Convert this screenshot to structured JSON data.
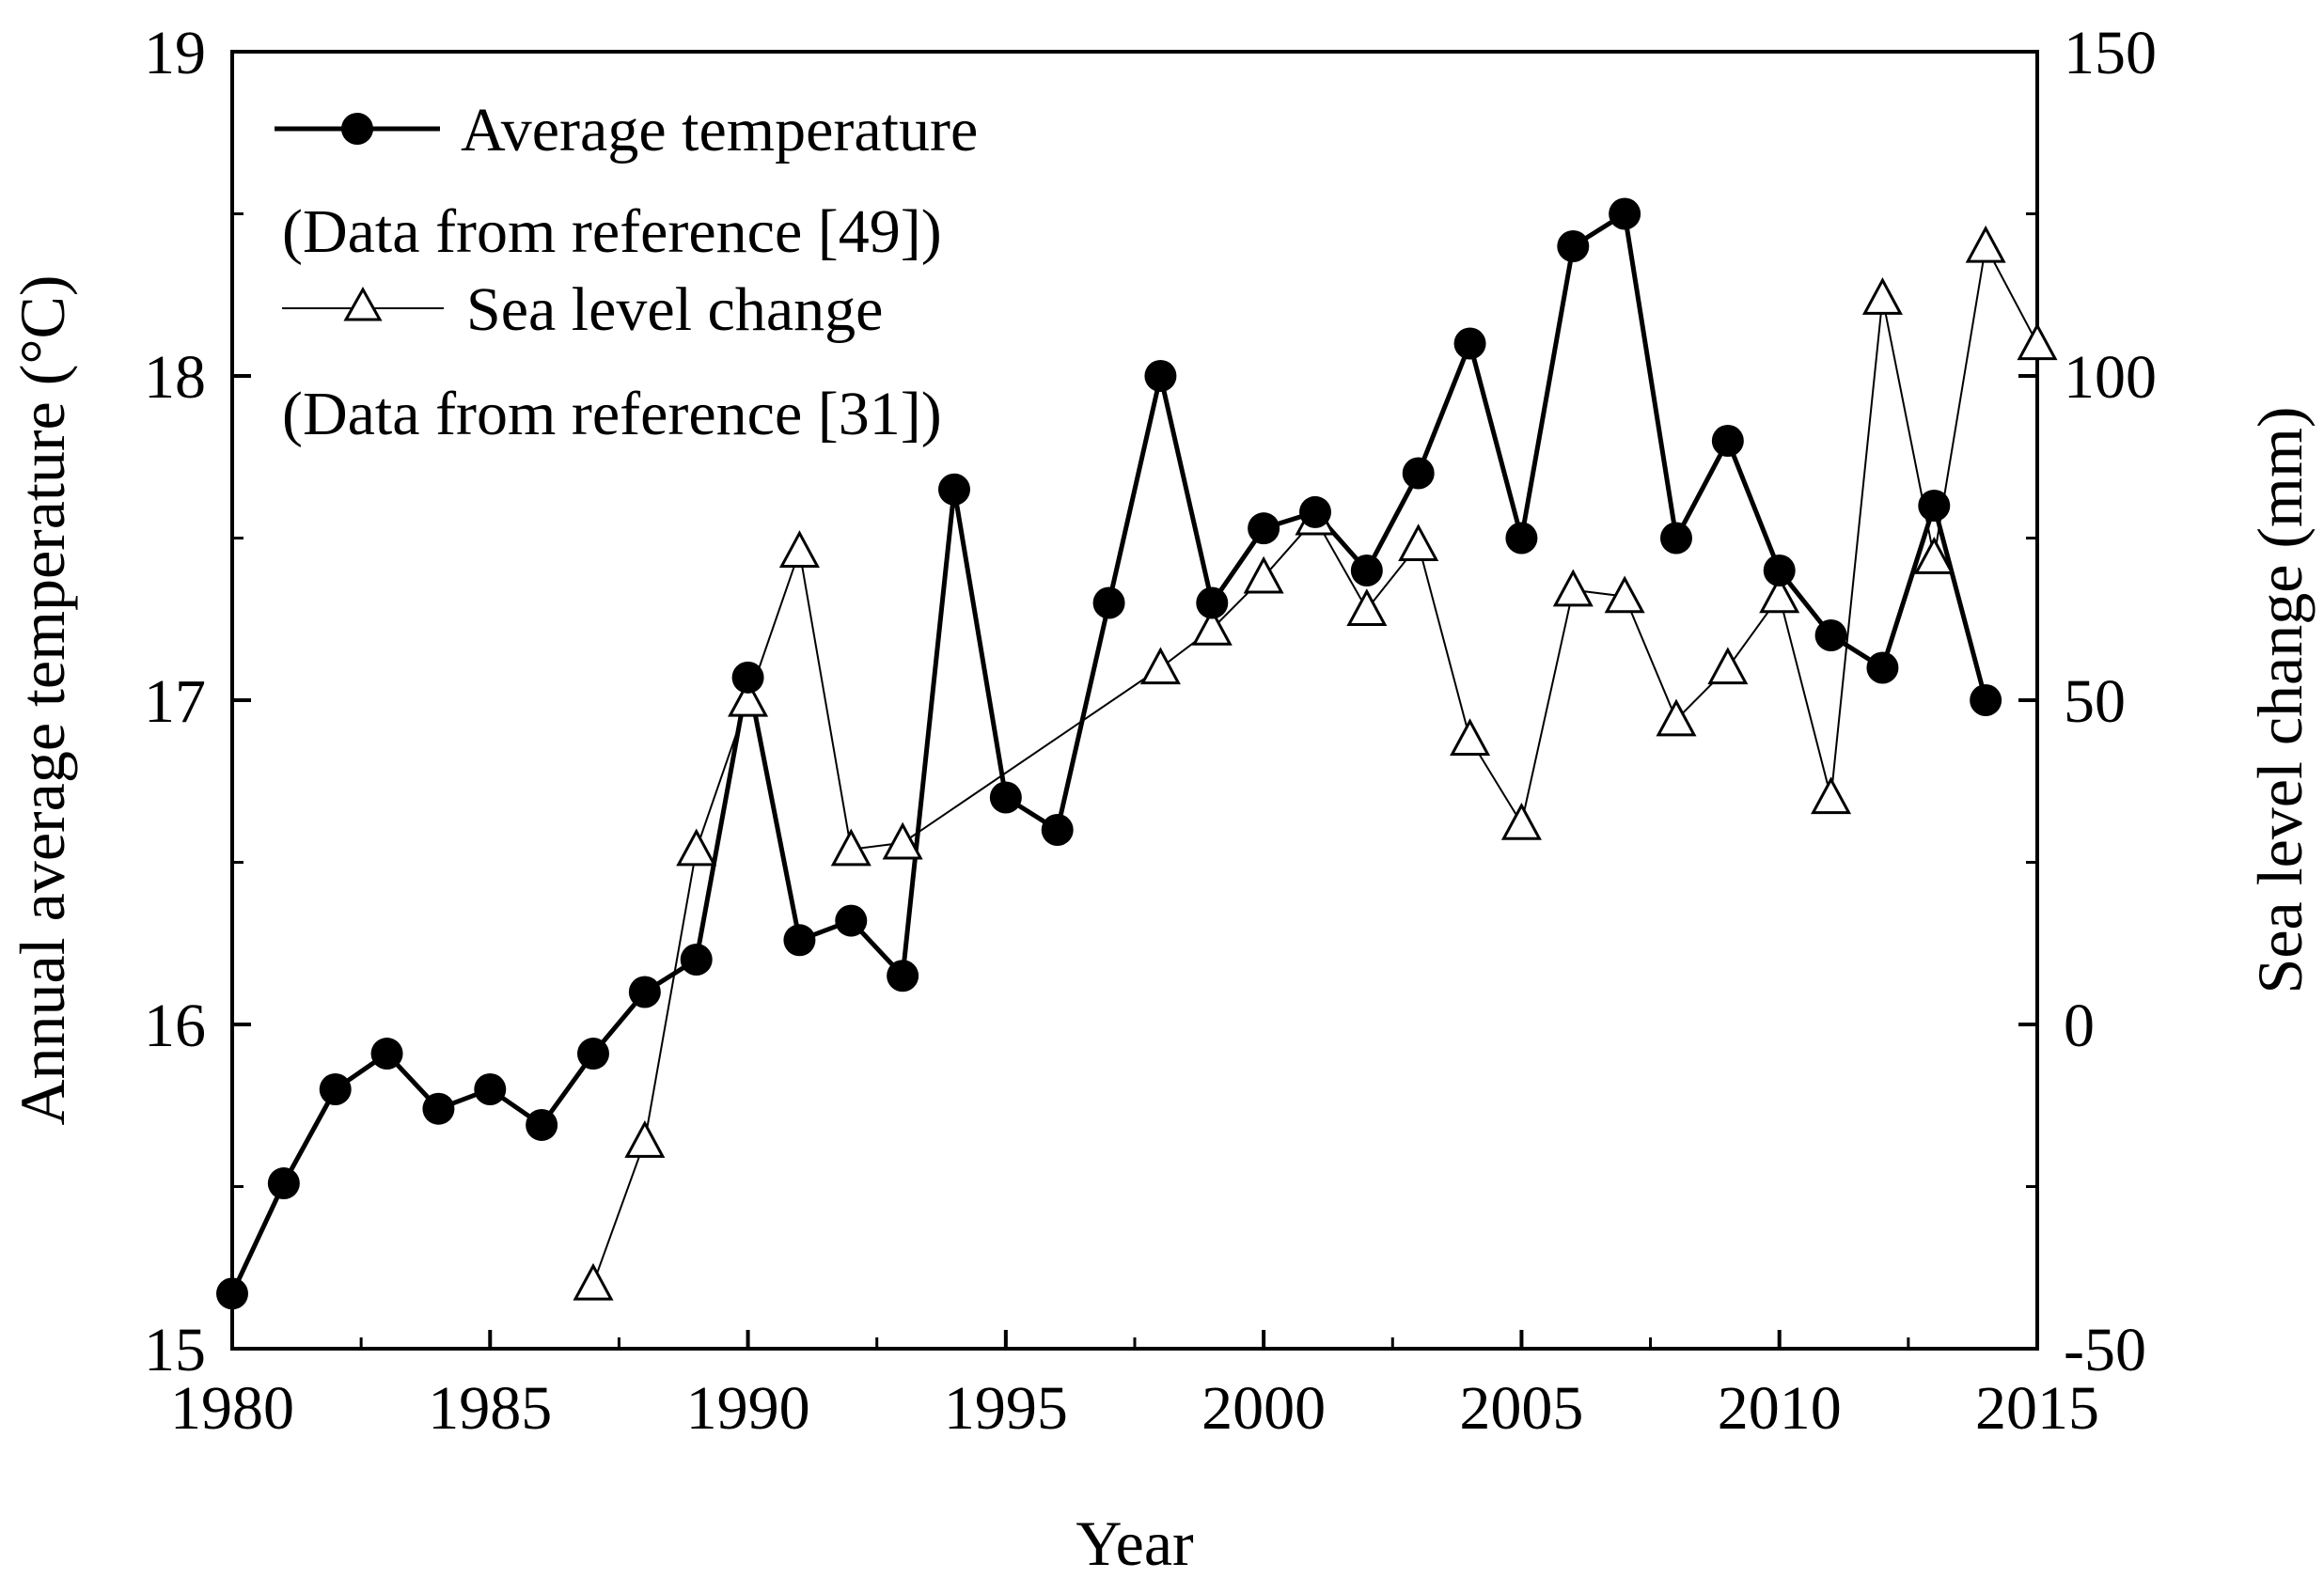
{
  "chart_data": {
    "type": "line",
    "title": "",
    "xlabel": "Year",
    "ylabel": "Annual average temperature (°C)",
    "ylabel_right": "Sea level change (mm)",
    "xlim": [
      1980,
      2015
    ],
    "ylim": [
      15,
      19
    ],
    "ylim_right": [
      -50,
      150
    ],
    "x_ticks": [
      "1980",
      "1985",
      "1990",
      "1995",
      "2000",
      "2005",
      "2010",
      "2015"
    ],
    "y_ticks": [
      "15",
      "16",
      "17",
      "18",
      "19"
    ],
    "y_ticks_right": [
      "-50",
      "0",
      "50",
      "100",
      "150"
    ],
    "legend_position": "top-left",
    "series": [
      {
        "name": "Average temperature",
        "legend_note": "(Data from reference [49])",
        "axis": "left",
        "marker": "filled-circle",
        "color": "#000000",
        "points": [
          [
            1980,
            15.17
          ],
          [
            1981,
            15.51
          ],
          [
            1982,
            15.8
          ],
          [
            1983,
            15.91
          ],
          [
            1984,
            15.74
          ],
          [
            1985,
            15.8
          ],
          [
            1986,
            15.69
          ],
          [
            1987,
            15.91
          ],
          [
            1988,
            16.1
          ],
          [
            1989,
            16.2
          ],
          [
            1990,
            17.07
          ],
          [
            1991,
            16.26
          ],
          [
            1992,
            16.32
          ],
          [
            1993,
            16.15
          ],
          [
            1994,
            17.65
          ],
          [
            1995,
            16.7
          ],
          [
            1996,
            16.6
          ],
          [
            1997,
            17.3
          ],
          [
            1998,
            18.0
          ],
          [
            1999,
            17.3
          ],
          [
            2000,
            17.53
          ],
          [
            2001,
            17.58
          ],
          [
            2002,
            17.4
          ],
          [
            2003,
            17.7
          ],
          [
            2004,
            18.1
          ],
          [
            2005,
            17.5
          ],
          [
            2006,
            18.4
          ],
          [
            2007,
            18.5
          ],
          [
            2008,
            17.5
          ],
          [
            2009,
            17.8
          ],
          [
            2010,
            17.4
          ],
          [
            2011,
            17.2
          ],
          [
            2012,
            17.1
          ],
          [
            2013,
            17.6
          ],
          [
            2014,
            17.0
          ]
        ]
      },
      {
        "name": "Sea level change",
        "legend_note": "(Data from reference [31])",
        "axis": "right",
        "marker": "open-triangle",
        "color": "#000000",
        "points": [
          [
            1987,
            -40
          ],
          [
            1988,
            -18
          ],
          [
            1989,
            27
          ],
          [
            1990,
            50
          ],
          [
            1991,
            73
          ],
          [
            1992,
            27
          ],
          [
            1993,
            28
          ],
          [
            1998,
            55
          ],
          [
            1999,
            61
          ],
          [
            2000,
            69
          ],
          [
            2001,
            78
          ],
          [
            2002,
            64
          ],
          [
            2003,
            74
          ],
          [
            2004,
            44
          ],
          [
            2005,
            31
          ],
          [
            2006,
            67
          ],
          [
            2007,
            66
          ],
          [
            2008,
            47
          ],
          [
            2009,
            55
          ],
          [
            2010,
            66
          ],
          [
            2011,
            35
          ],
          [
            2012,
            112
          ],
          [
            2013,
            72
          ],
          [
            2014,
            120
          ],
          [
            2015,
            105
          ]
        ]
      }
    ]
  }
}
